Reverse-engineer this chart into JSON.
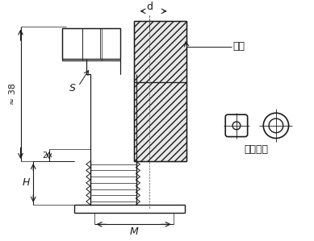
{
  "bg_color": "#ffffff",
  "line_color": "#1a1a1a",
  "hatch_color": "#333333",
  "fig_width": 3.89,
  "fig_height": 2.99,
  "labels": {
    "d": "d",
    "kasset": "卡套",
    "S": "S",
    "approx38": "≈ 38",
    "two": "2",
    "H": "H",
    "M": "M",
    "gudingkasset": "固定卡套"
  }
}
